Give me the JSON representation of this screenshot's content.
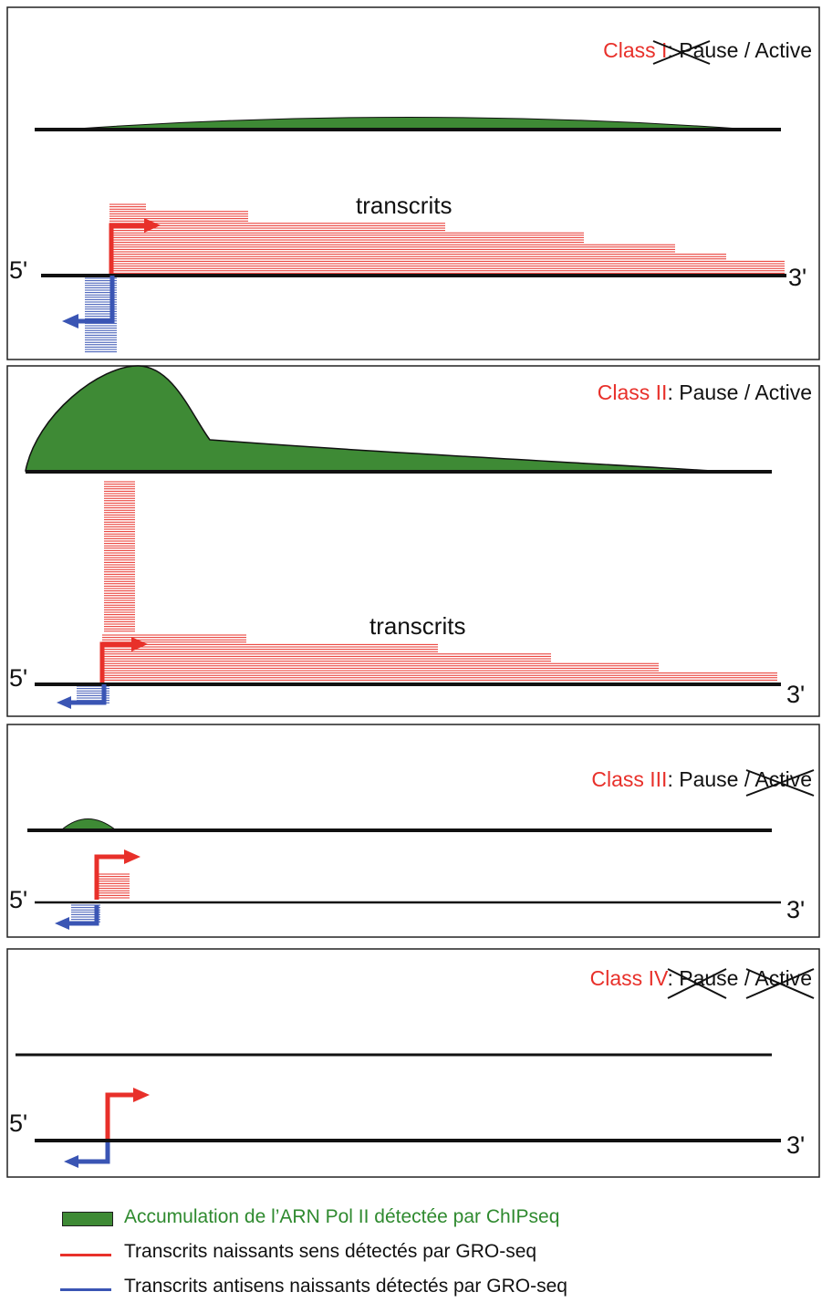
{
  "colors": {
    "class_label": "#e8302a",
    "pol2_fill": "#3e8a35",
    "sense": "#e8302a",
    "antisense": "#3a55b4",
    "legend_pol2_text": "#2f8a2f"
  },
  "panels": [
    {
      "class_name": "Class I",
      "status_sep": ": ",
      "pause_label": "Pause",
      "slash": " / ",
      "active_label": "Active",
      "pause_crossed": true,
      "active_crossed": false,
      "transcripts_label": "transcrits",
      "five_prime": "5'",
      "three_prime": "3'"
    },
    {
      "class_name": "Class II",
      "status_sep": ": ",
      "pause_label": "Pause",
      "slash": " / ",
      "active_label": "Active",
      "pause_crossed": false,
      "active_crossed": false,
      "transcripts_label": "transcrits",
      "five_prime": "5'",
      "three_prime": "3'"
    },
    {
      "class_name": "Class III",
      "status_sep": ": ",
      "pause_label": "Pause",
      "slash": " / ",
      "active_label": "Active",
      "pause_crossed": false,
      "active_crossed": true,
      "five_prime": "5'",
      "three_prime": "3'"
    },
    {
      "class_name": "Class IV",
      "status_sep": ": ",
      "pause_label": "Pause",
      "slash": " / ",
      "active_label": "Active",
      "pause_crossed": true,
      "active_crossed": true,
      "five_prime": "5'",
      "three_prime": "3'"
    }
  ],
  "legend": {
    "pol2": "Accumulation de l’ARN Pol II détectée par ChIPseq",
    "sense": "Transcrits naissants sens détectés par GRO-seq",
    "antisense": "Transcrits antisens naissants détectés par GRO-seq"
  }
}
